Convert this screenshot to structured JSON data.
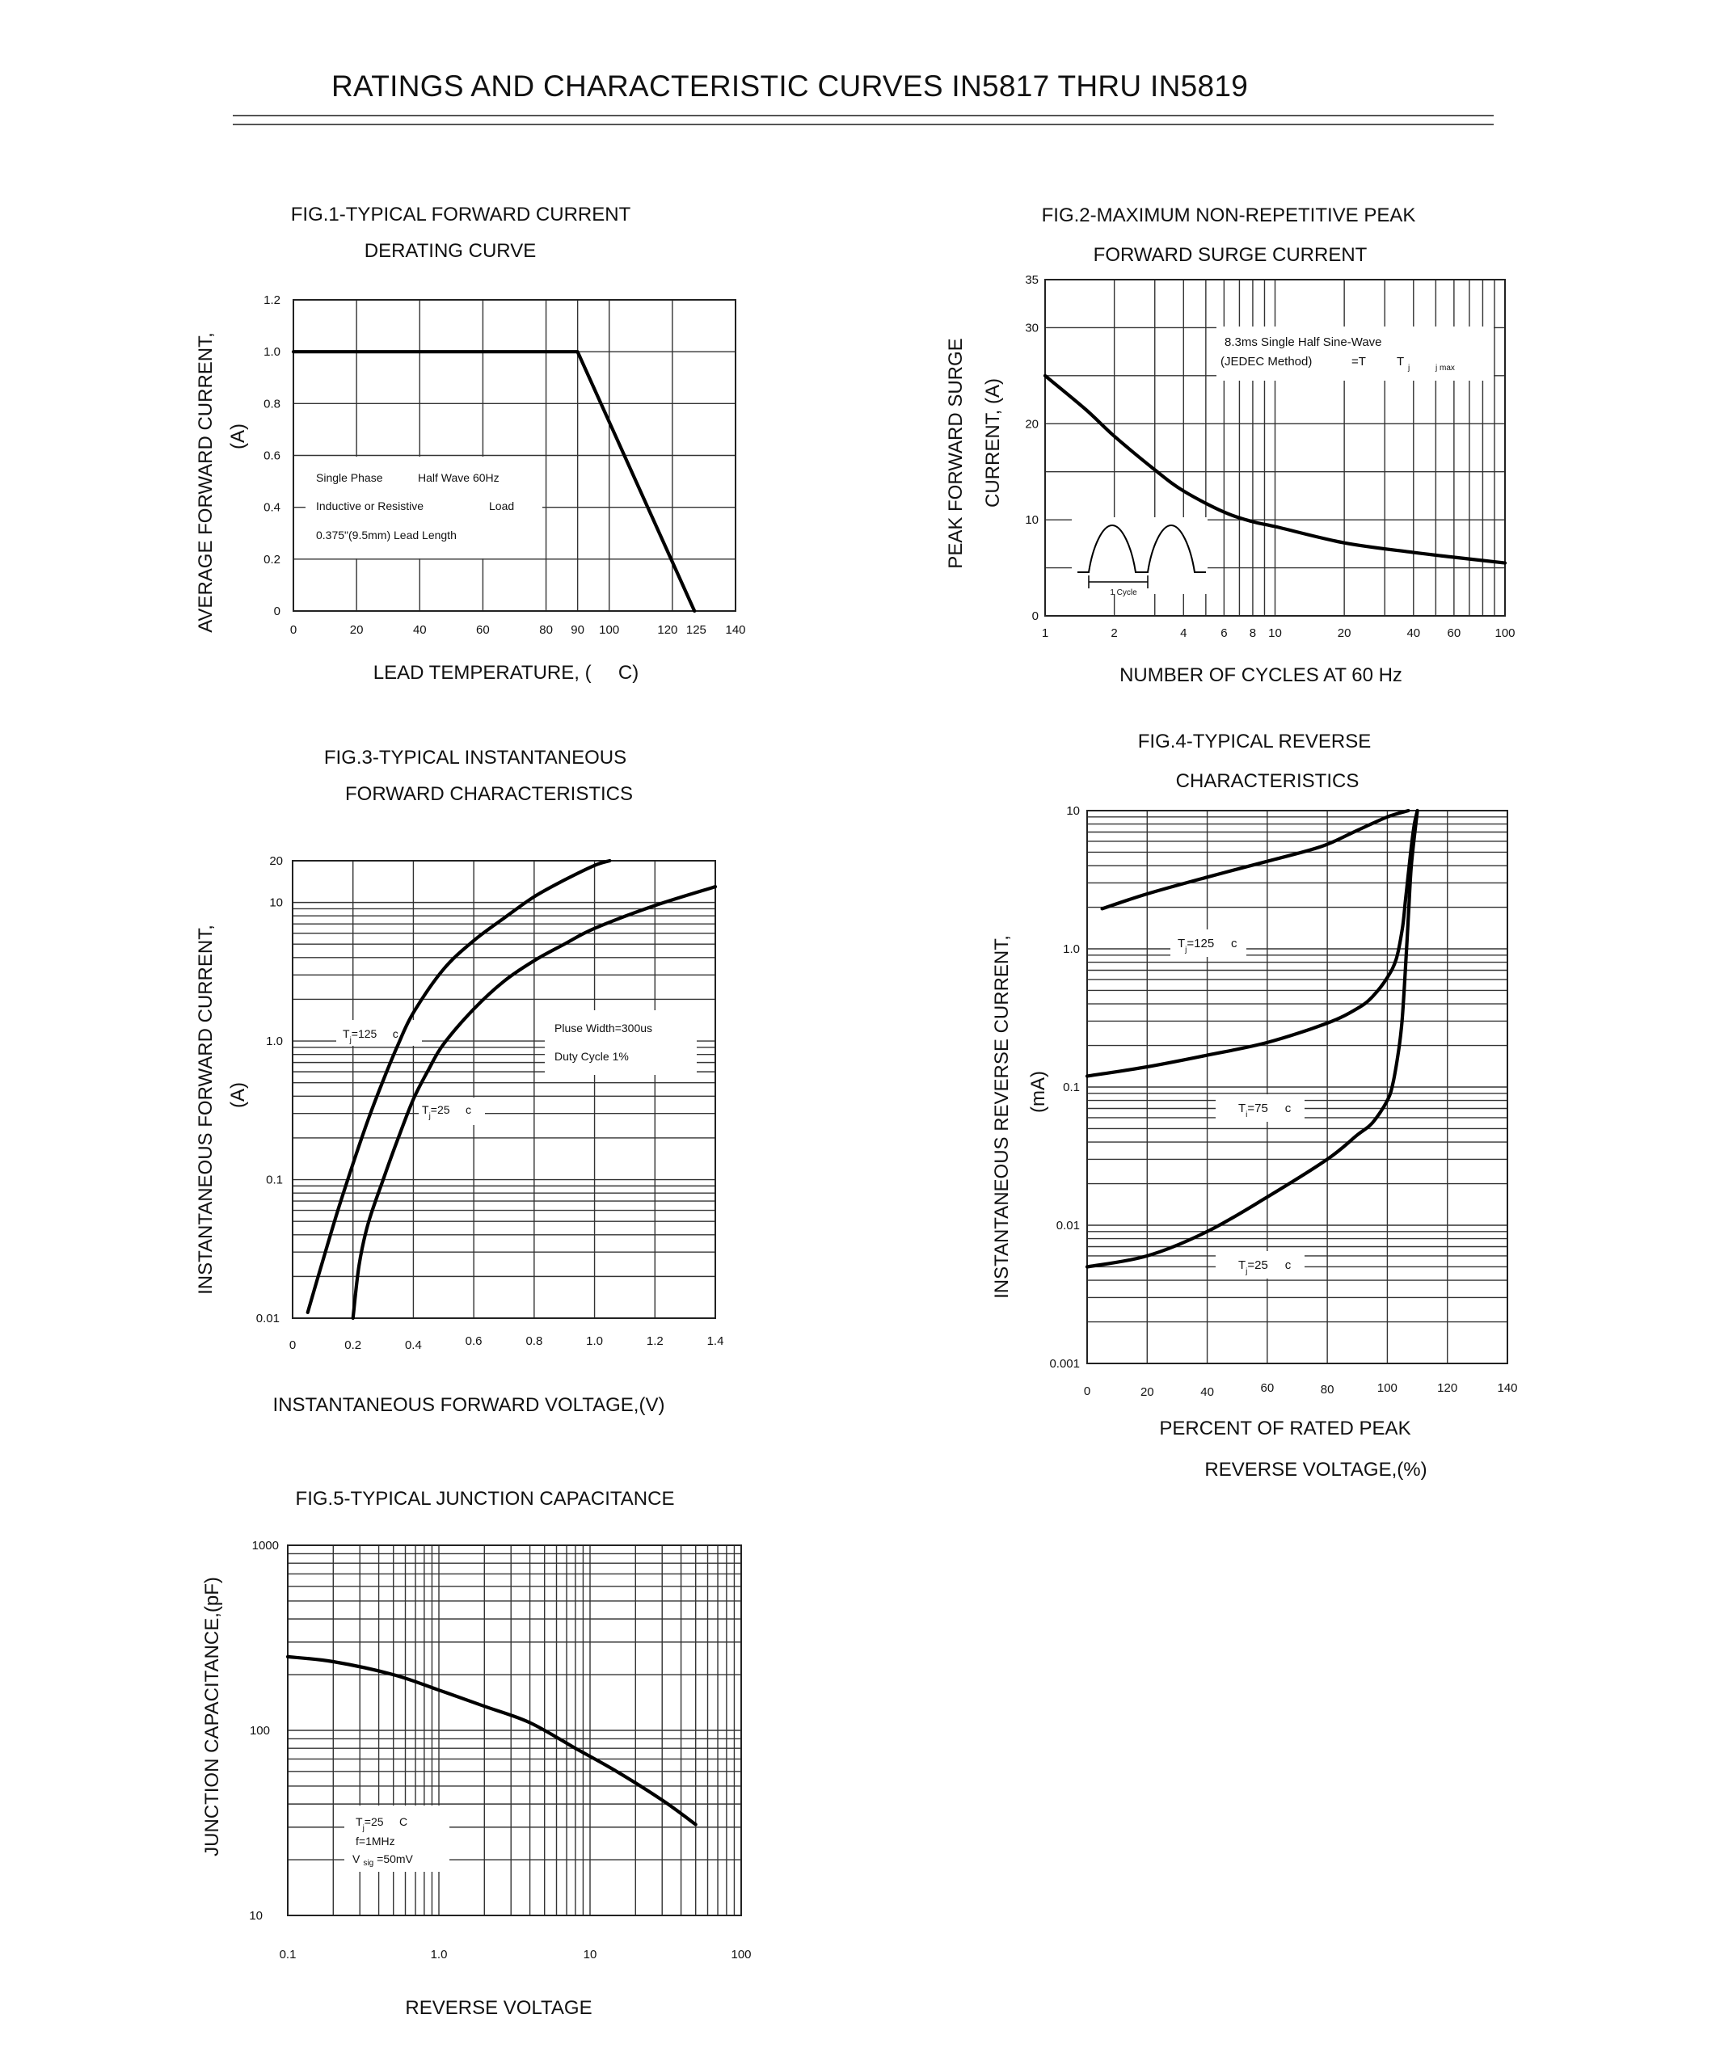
{
  "title": "RATINGS AND CHARACTERISTIC CURVES IN5817 THRU IN5819",
  "chart_data": [
    {
      "id": "fig1",
      "type": "line",
      "title_lines": [
        "FIG.1-TYPICAL FORWARD CURRENT",
        "DERATING CURVE"
      ],
      "xlabel": "LEAD TEMPERATURE, (     C)",
      "ylabel_lines": [
        "AVERAGE FORWARD CURRENT,",
        "(A)"
      ],
      "xscale": "linear",
      "yscale": "linear",
      "xlim": [
        0,
        140
      ],
      "ylim": [
        0,
        1.2
      ],
      "xticks": [
        "0",
        "20",
        "40",
        "60",
        "80",
        "90",
        "100",
        "120",
        "125",
        "140"
      ],
      "yticks": [
        "0",
        "0.2",
        "0.4",
        "0.6",
        "0.8",
        "1.0",
        "1.2"
      ],
      "annotations": [
        "Single Phase",
        "Half Wave 60Hz",
        "Inductive or Resistive",
        "Load",
        "0.375\"(9.5mm) Lead Length"
      ],
      "series": [
        {
          "name": "derating",
          "x": [
            0,
            90,
            127
          ],
          "y": [
            1.0,
            1.0,
            0.0
          ]
        }
      ]
    },
    {
      "id": "fig2",
      "type": "line",
      "title_lines": [
        "FIG.2-MAXIMUM NON-REPETITIVE PEAK",
        "FORWARD SURGE CURRENT"
      ],
      "xlabel": "NUMBER OF CYCLES AT 60 Hz",
      "ylabel_lines": [
        "PEAK FORWARD SURGE",
        "CURRENT, (A)"
      ],
      "xscale": "log",
      "yscale": "linear",
      "xlim": [
        1,
        100
      ],
      "ylim": [
        0,
        35
      ],
      "xticks": [
        "1",
        "2",
        "4",
        "6",
        "8",
        "10",
        "20",
        "40",
        "60",
        "100"
      ],
      "yticks": [
        "0",
        "10",
        "20",
        "30",
        "35"
      ],
      "annotations": [
        "8.3ms Single Half Sine-Wave",
        "(JEDEC Method)",
        "=T",
        "T",
        "j",
        "j max",
        "1 Cycle"
      ],
      "series": [
        {
          "name": "surge",
          "x": [
            1,
            1.5,
            2,
            3,
            4,
            6,
            8,
            10,
            20,
            40,
            60,
            100
          ],
          "y": [
            25,
            21.5,
            18.7,
            15.2,
            13,
            10.8,
            9.8,
            9.3,
            7.6,
            6.6,
            6.1,
            5.5
          ]
        }
      ]
    },
    {
      "id": "fig3",
      "type": "line",
      "title_lines": [
        "FIG.3-TYPICAL INSTANTANEOUS",
        "FORWARD CHARACTERISTICS"
      ],
      "xlabel": "INSTANTANEOUS FORWARD VOLTAGE,(V)",
      "ylabel_lines": [
        "INSTANTANEOUS FORWARD CURRENT,",
        "(A)"
      ],
      "xscale": "linear",
      "yscale": "log",
      "xlim": [
        0,
        1.4
      ],
      "ylim": [
        0.01,
        20
      ],
      "xticks": [
        "0",
        "0.2",
        "0.4",
        "0.6",
        "0.8",
        "1.0",
        "1.2",
        "1.4"
      ],
      "yticks": [
        "0.01",
        "0.1",
        "1.0",
        "10",
        "20"
      ],
      "annotations": [
        "Pluse Width=300us",
        "Duty Cycle 1%"
      ],
      "series": [
        {
          "name": "T",
          "sub": "j",
          "label_rest": "=125     c",
          "x": [
            0.05,
            0.1,
            0.15,
            0.2,
            0.25,
            0.3,
            0.35,
            0.4,
            0.5,
            0.6,
            0.7,
            0.8,
            0.9,
            1.0,
            1.05
          ],
          "y": [
            0.011,
            0.026,
            0.06,
            0.13,
            0.27,
            0.52,
            0.95,
            1.6,
            3.3,
            5.3,
            7.7,
            11,
            14.5,
            18.5,
            20
          ]
        },
        {
          "name": "T",
          "sub": "j",
          "label_rest": "=25     c",
          "x": [
            0.2,
            0.22,
            0.25,
            0.3,
            0.35,
            0.4,
            0.45,
            0.5,
            0.6,
            0.7,
            0.8,
            0.9,
            1.0,
            1.2,
            1.4
          ],
          "y": [
            0.01,
            0.024,
            0.048,
            0.1,
            0.2,
            0.38,
            0.62,
            0.95,
            1.7,
            2.7,
            3.8,
            5,
            6.5,
            9.5,
            13
          ]
        }
      ]
    },
    {
      "id": "fig4",
      "type": "line",
      "title_lines": [
        "FIG.4-TYPICAL REVERSE",
        "CHARACTERISTICS"
      ],
      "xlabel_lines": [
        "PERCENT OF RATED PEAK",
        "REVERSE VOLTAGE,(%)"
      ],
      "ylabel_lines": [
        "INSTANTANEOUS REVERSE CURRENT,",
        "(mA)"
      ],
      "xscale": "linear",
      "yscale": "log",
      "xlim": [
        0,
        140
      ],
      "ylim": [
        0.001,
        10
      ],
      "xticks": [
        "0",
        "20",
        "40",
        "60",
        "80",
        "100",
        "120",
        "140"
      ],
      "yticks": [
        "0.001",
        "0.01",
        "0.1",
        "1.0",
        "10"
      ],
      "series": [
        {
          "name": "T",
          "sub": "j",
          "label_rest": "=125     c",
          "x": [
            5,
            20,
            40,
            60,
            78,
            90,
            100,
            107
          ],
          "y": [
            1.95,
            2.5,
            3.3,
            4.3,
            5.5,
            7.2,
            9,
            11
          ]
        },
        {
          "name": "T",
          "sub": "i",
          "label_rest": "=75     c",
          "x": [
            0,
            20,
            40,
            60,
            80,
            90,
            95,
            100,
            103,
            105,
            106,
            107,
            108,
            109,
            110
          ],
          "y": [
            0.12,
            0.14,
            0.17,
            0.21,
            0.29,
            0.37,
            0.45,
            0.62,
            0.85,
            1.4,
            2.2,
            3.5,
            5.5,
            8,
            11
          ]
        },
        {
          "name": "T",
          "sub": "j",
          "label_rest": "=25     c",
          "x": [
            0,
            20,
            40,
            60,
            80,
            90,
            95,
            100,
            102,
            104,
            105,
            106,
            107,
            108,
            110
          ],
          "y": [
            0.005,
            0.006,
            0.009,
            0.016,
            0.03,
            0.045,
            0.055,
            0.08,
            0.11,
            0.2,
            0.32,
            0.7,
            1.7,
            4,
            11
          ]
        }
      ]
    },
    {
      "id": "fig5",
      "type": "line",
      "title_lines": [
        "FIG.5-TYPICAL JUNCTION CAPACITANCE"
      ],
      "xlabel": "REVERSE VOLTAGE",
      "ylabel_lines": [
        "JUNCTION CAPACITANCE,(pF)"
      ],
      "xscale": "log",
      "yscale": "log",
      "xlim": [
        0.1,
        100
      ],
      "ylim": [
        10,
        1000
      ],
      "xticks": [
        "0.1",
        "1.0",
        "10",
        "100"
      ],
      "yticks": [
        "10",
        "100",
        "1000"
      ],
      "annotations": [
        "T",
        "j",
        "=25     C",
        "f=1MHz",
        "V",
        "sig",
        "=50mV"
      ],
      "series": [
        {
          "name": "capacitance",
          "x": [
            0.1,
            0.2,
            0.5,
            1,
            2,
            4,
            8,
            15,
            30,
            50
          ],
          "y": [
            250,
            235,
            200,
            165,
            135,
            110,
            80,
            60,
            42,
            31
          ]
        }
      ]
    }
  ]
}
